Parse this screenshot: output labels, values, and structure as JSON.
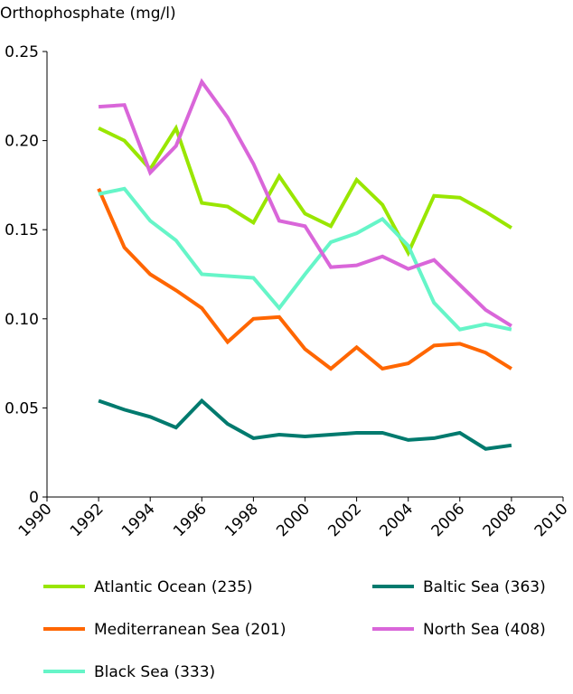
{
  "chart_data": {
    "type": "line",
    "title": "Orthophosphate (mg/l)",
    "xlabel": "",
    "ylabel": "",
    "xlim": [
      1990,
      2010
    ],
    "ylim": [
      0,
      0.25
    ],
    "grid": false,
    "legend_placement": "bottom",
    "x_ticks": [
      "1990",
      "1992",
      "1994",
      "1996",
      "1998",
      "2000",
      "2002",
      "2004",
      "2006",
      "2008",
      "2010"
    ],
    "y_ticks": [
      "0",
      "0.05",
      "0.10",
      "0.15",
      "0.20",
      "0.25"
    ],
    "x": [
      1992,
      1993,
      1994,
      1995,
      1996,
      1997,
      1998,
      1999,
      2000,
      2001,
      2002,
      2003,
      2004,
      2005,
      2006,
      2007,
      2008
    ],
    "series": [
      {
        "name": "Atlantic Ocean (235)",
        "color": "#99e600",
        "values": [
          0.207,
          0.2,
          0.184,
          0.207,
          0.165,
          0.163,
          0.154,
          0.18,
          0.159,
          0.152,
          0.178,
          0.164,
          0.137,
          0.169,
          0.168,
          0.16,
          0.151
        ]
      },
      {
        "name": "Mediterranean Sea (201)",
        "color": "#ff6600",
        "values": [
          0.173,
          0.14,
          0.125,
          0.116,
          0.106,
          0.087,
          0.1,
          0.101,
          0.083,
          0.072,
          0.084,
          0.072,
          0.075,
          0.085,
          0.086,
          0.081,
          0.072
        ]
      },
      {
        "name": "Black Sea (333)",
        "color": "#66f5c8",
        "values": [
          0.17,
          0.173,
          0.155,
          0.144,
          0.125,
          0.124,
          0.123,
          0.106,
          0.125,
          0.143,
          0.148,
          0.156,
          0.141,
          0.109,
          0.094,
          0.097,
          0.094
        ]
      },
      {
        "name": "Baltic Sea (363)",
        "color": "#007a6e",
        "values": [
          0.054,
          0.049,
          0.045,
          0.039,
          0.054,
          0.041,
          0.033,
          0.035,
          0.034,
          0.035,
          0.036,
          0.036,
          0.032,
          0.033,
          0.036,
          0.027,
          0.029
        ]
      },
      {
        "name": "North Sea (408)",
        "color": "#d966d9",
        "values": [
          0.219,
          0.22,
          0.182,
          0.197,
          0.233,
          0.213,
          0.187,
          0.155,
          0.152,
          0.129,
          0.13,
          0.135,
          0.128,
          0.133,
          0.119,
          0.105,
          0.096
        ]
      }
    ]
  }
}
